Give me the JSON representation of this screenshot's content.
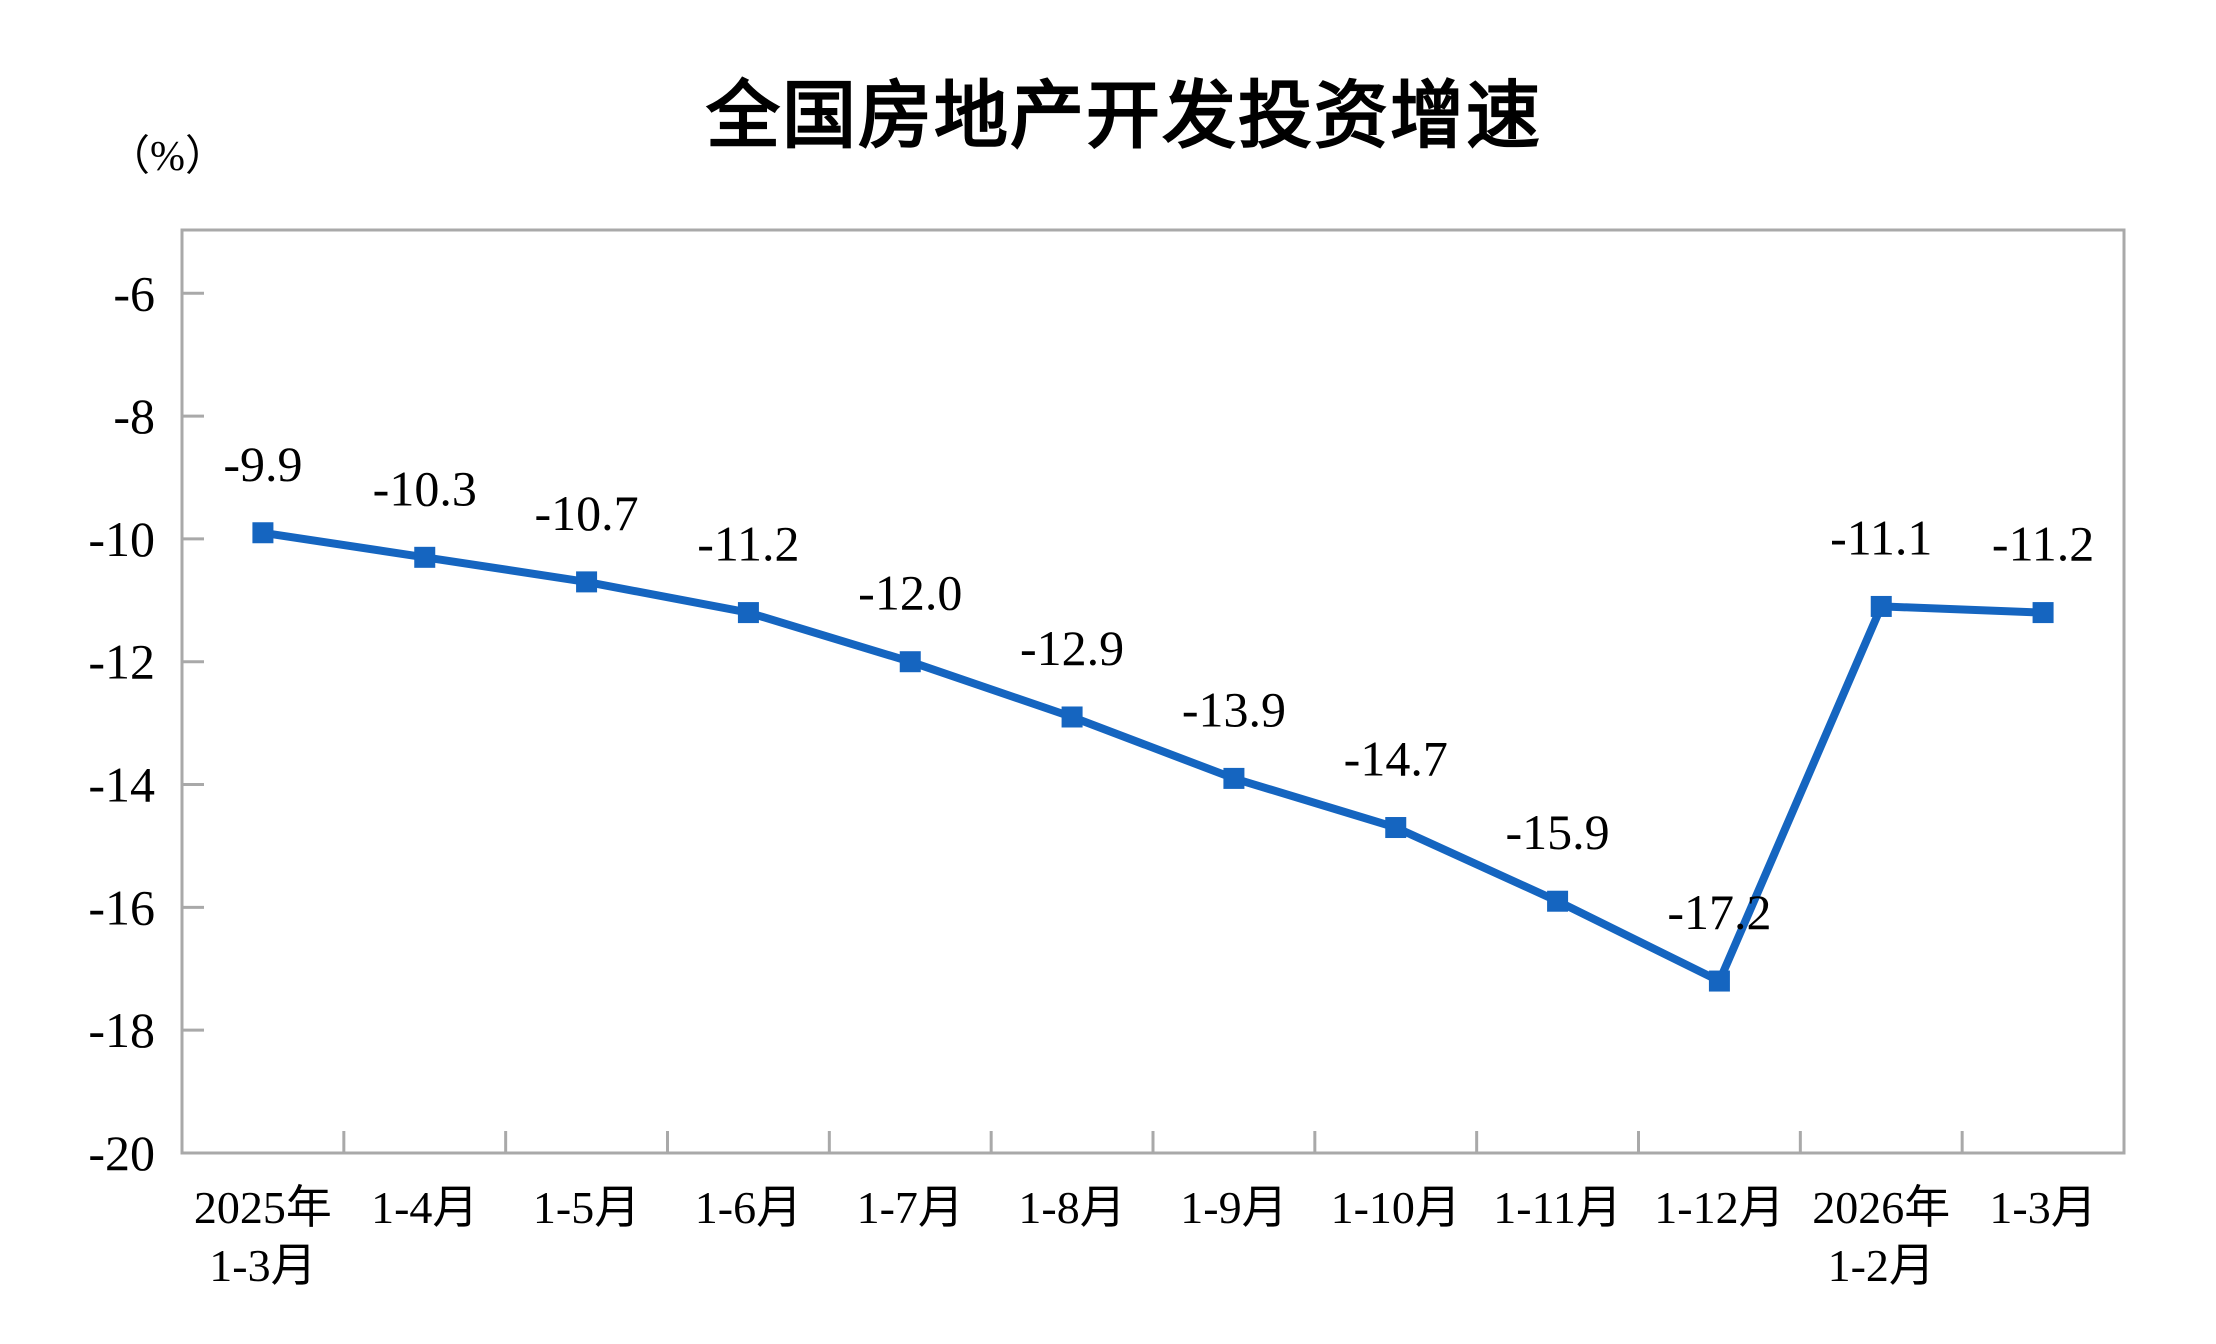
{
  "chart_data": {
    "type": "line",
    "title": "全国房地产开发投资增速",
    "y_unit_label": "（%）",
    "categories": [
      "2025年1-3月",
      "1-4月",
      "1-5月",
      "1-6月",
      "1-7月",
      "1-8月",
      "1-9月",
      "1-10月",
      "1-11月",
      "1-12月",
      "2026年1-2月",
      "1-3月"
    ],
    "category_label_lines": [
      [
        "2025年",
        "1-3月"
      ],
      [
        "1-4月"
      ],
      [
        "1-5月"
      ],
      [
        "1-6月"
      ],
      [
        "1-7月"
      ],
      [
        "1-8月"
      ],
      [
        "1-9月"
      ],
      [
        "1-10月"
      ],
      [
        "1-11月"
      ],
      [
        "1-12月"
      ],
      [
        "2026年",
        "1-2月"
      ],
      [
        "1-3月"
      ]
    ],
    "values": [
      -9.9,
      -10.3,
      -10.7,
      -11.2,
      -12.0,
      -12.9,
      -13.9,
      -14.7,
      -15.9,
      -17.2,
      -11.1,
      -11.2
    ],
    "point_labels": [
      "-9.9",
      "-10.3",
      "-10.7",
      "-11.2",
      "-12.0",
      "-12.9",
      "-13.9",
      "-14.7",
      "-15.9",
      "-17.2",
      "-11.1",
      "-11.2"
    ],
    "y_ticks": [
      -6,
      -8,
      -10,
      -12,
      -14,
      -16,
      -18,
      -20
    ],
    "ylim": [
      -20,
      -4.97
    ],
    "grid": false,
    "legend": "none",
    "marker": "square",
    "colors": {
      "line": "#1565C0",
      "marker": "#1565C0",
      "axis": "#A9A9A9",
      "text": "#000000"
    }
  }
}
